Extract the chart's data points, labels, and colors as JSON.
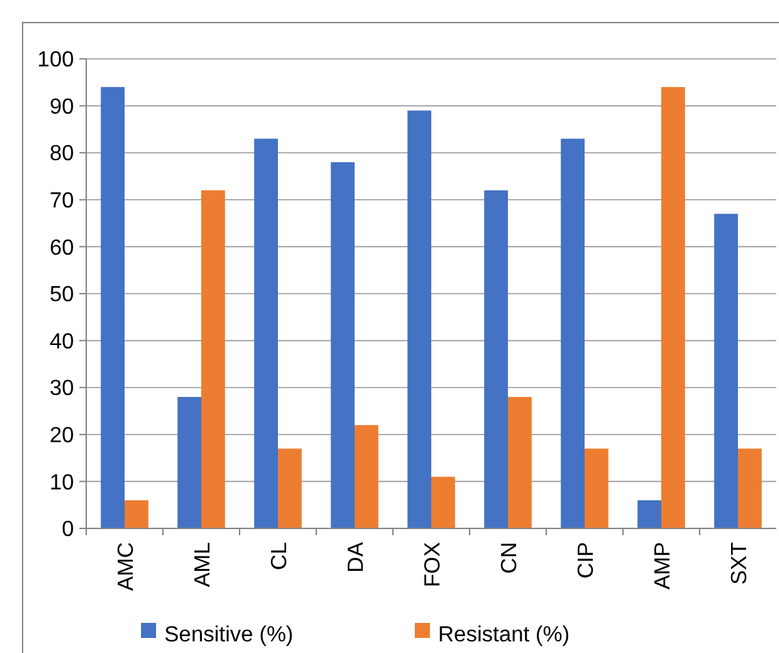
{
  "chart_data": {
    "type": "bar",
    "categories": [
      "AMC",
      "AML",
      "CL",
      "DA",
      "FOX",
      "CN",
      "CIP",
      "AMP",
      "SXT"
    ],
    "series": [
      {
        "name": "Sensitive (%)",
        "color": "#4472c4",
        "values": [
          94,
          28,
          83,
          78,
          89,
          72,
          83,
          6,
          67
        ]
      },
      {
        "name": "Resistant (%)",
        "color": "#ed7d31",
        "values": [
          6,
          72,
          17,
          22,
          11,
          28,
          17,
          94,
          17
        ]
      }
    ],
    "ylim": [
      0,
      100
    ],
    "yticks": [
      0,
      10,
      20,
      30,
      40,
      50,
      60,
      70,
      80,
      90,
      100
    ],
    "grid": "y",
    "legend": "bottom"
  }
}
